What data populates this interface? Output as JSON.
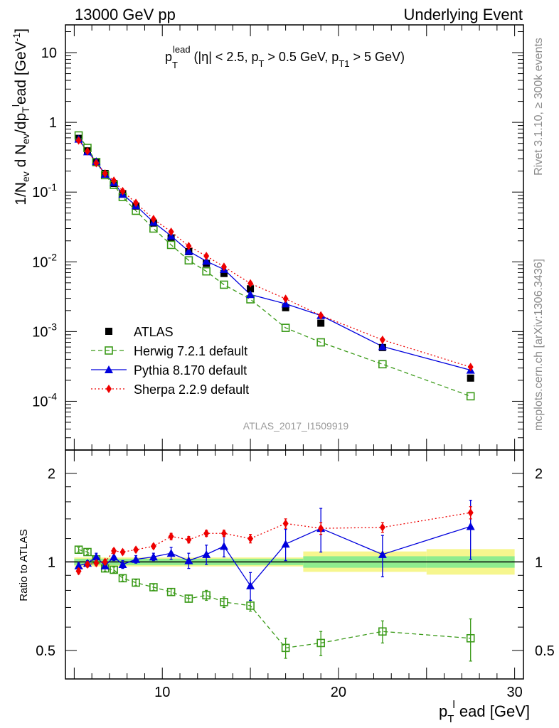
{
  "header": {
    "left": "13000 GeV pp",
    "right": "Underlying Event"
  },
  "side_labels": {
    "rivet": "Rivet 3.1.10, ≥ 300k events",
    "mcplots": "mcplots.cern.ch [arXiv:1306.3436]"
  },
  "watermark": "ATLAS_2017_I1509919",
  "legend_title": {
    "p": "p",
    "sub": "T",
    "sup": "lead",
    "cond_a": " (|η| < 2.5, p",
    "cond_b": " > 0.5 GeV, p",
    "cond_sub2": "T1",
    "cond_c": " > 5 GeV)"
  },
  "axes": {
    "y_main_label": "1/N_ev d N_ev/dp_T^l ead [GeV^-1]",
    "y_ratio_label": "Ratio to ATLAS",
    "x_label": "p_T^l ead [GeV]",
    "x_ticks": [
      "10",
      "20",
      "30"
    ],
    "y_main_ticks": [
      "10",
      "1",
      "10^-1",
      "10^-2",
      "10^-3",
      "10^-4"
    ],
    "y_ratio_ticks": [
      "2",
      "1",
      "0.5"
    ],
    "ratio_ticks_right": [
      "2",
      "1",
      "0.5"
    ]
  },
  "chart_data": [
    {
      "panel": "main",
      "type": "scatter",
      "xlim": [
        4.5,
        30.5
      ],
      "ylim": [
        2e-05,
        25
      ],
      "yscale": "log",
      "x": [
        5.25,
        5.75,
        6.25,
        6.75,
        7.25,
        7.75,
        8.5,
        9.5,
        10.5,
        11.5,
        12.5,
        13.5,
        15.0,
        17.0,
        19.0,
        22.5,
        27.5
      ],
      "series": [
        {
          "name": "ATLAS",
          "color": "#000000",
          "marker": "square",
          "values": [
            0.59,
            0.39,
            0.265,
            0.185,
            0.133,
            0.095,
            0.063,
            0.036,
            0.022,
            0.014,
            0.0095,
            0.0068,
            0.0041,
            0.0022,
            0.00132,
            0.00059,
            0.000215
          ]
        },
        {
          "name": "Herwig 7.2.1 default",
          "color": "#3a9a18",
          "marker": "open-square",
          "line": "dashed",
          "values": [
            0.65,
            0.43,
            0.27,
            0.175,
            0.127,
            0.085,
            0.054,
            0.03,
            0.0175,
            0.0105,
            0.0073,
            0.0047,
            0.0029,
            0.00113,
            0.0007,
            0.00034,
            0.000118
          ]
        },
        {
          "name": "Pythia 8.170 default",
          "color": "#0000dd",
          "marker": "triangle",
          "line": "solid",
          "values": [
            0.575,
            0.38,
            0.275,
            0.18,
            0.137,
            0.093,
            0.064,
            0.037,
            0.0235,
            0.0142,
            0.0102,
            0.0078,
            0.0034,
            0.0025,
            0.0017,
            0.00061,
            0.00028
          ]
        },
        {
          "name": "Sherpa 2.2.9 default",
          "color": "#ee0000",
          "marker": "diamond",
          "line": "dotted",
          "values": [
            0.55,
            0.385,
            0.26,
            0.185,
            0.146,
            0.103,
            0.07,
            0.041,
            0.027,
            0.0168,
            0.0121,
            0.0085,
            0.0049,
            0.00295,
            0.0017,
            0.00076,
            0.00031
          ]
        }
      ]
    },
    {
      "panel": "ratio",
      "type": "scatter",
      "xlim": [
        4.5,
        30.5
      ],
      "ylim": [
        0.4,
        2.4
      ],
      "yscale": "log",
      "x": [
        5.25,
        5.75,
        6.25,
        6.75,
        7.25,
        7.75,
        8.5,
        9.5,
        10.5,
        11.5,
        12.5,
        13.5,
        15.0,
        17.0,
        19.0,
        22.5,
        27.5
      ],
      "band": {
        "edges": [
          5,
          18,
          25,
          30
        ],
        "stat": [
          [
            0.975,
            1.025
          ],
          [
            0.955,
            1.045
          ],
          [
            0.955,
            1.045
          ]
        ],
        "total": [
          [
            0.965,
            1.035
          ],
          [
            0.925,
            1.085
          ],
          [
            0.905,
            1.105
          ]
        ]
      },
      "series": [
        {
          "name": "Herwig 7.2.1 default",
          "values": [
            1.1,
            1.08,
            1.02,
            0.95,
            0.94,
            0.88,
            0.85,
            0.82,
            0.79,
            0.75,
            0.77,
            0.73,
            0.71,
            0.51,
            0.53,
            0.58,
            0.55
          ],
          "errors": [
            0.02,
            0.02,
            0.02,
            0.02,
            0.02,
            0.02,
            0.02,
            0.02,
            0.02,
            0.02,
            0.03,
            0.03,
            0.03,
            0.04,
            0.05,
            0.05,
            0.09
          ]
        },
        {
          "name": "Pythia 8.170 default",
          "values": [
            0.97,
            0.99,
            1.04,
            0.97,
            1.04,
            0.98,
            1.02,
            1.04,
            1.07,
            1.01,
            1.06,
            1.13,
            0.83,
            1.15,
            1.3,
            1.06,
            1.32
          ],
          "errors": [
            0.02,
            0.02,
            0.03,
            0.02,
            0.03,
            0.03,
            0.03,
            0.03,
            0.05,
            0.06,
            0.08,
            0.09,
            0.09,
            0.14,
            0.22,
            0.17,
            0.3
          ]
        },
        {
          "name": "Sherpa 2.2.9 default",
          "values": [
            0.93,
            0.98,
            0.99,
            1.0,
            1.09,
            1.08,
            1.1,
            1.13,
            1.22,
            1.19,
            1.25,
            1.25,
            1.2,
            1.35,
            1.3,
            1.31,
            1.47
          ],
          "errors": [
            0.02,
            0.02,
            0.02,
            0.02,
            0.02,
            0.02,
            0.02,
            0.02,
            0.03,
            0.03,
            0.03,
            0.03,
            0.04,
            0.05,
            0.06,
            0.05,
            0.07
          ]
        }
      ]
    }
  ]
}
